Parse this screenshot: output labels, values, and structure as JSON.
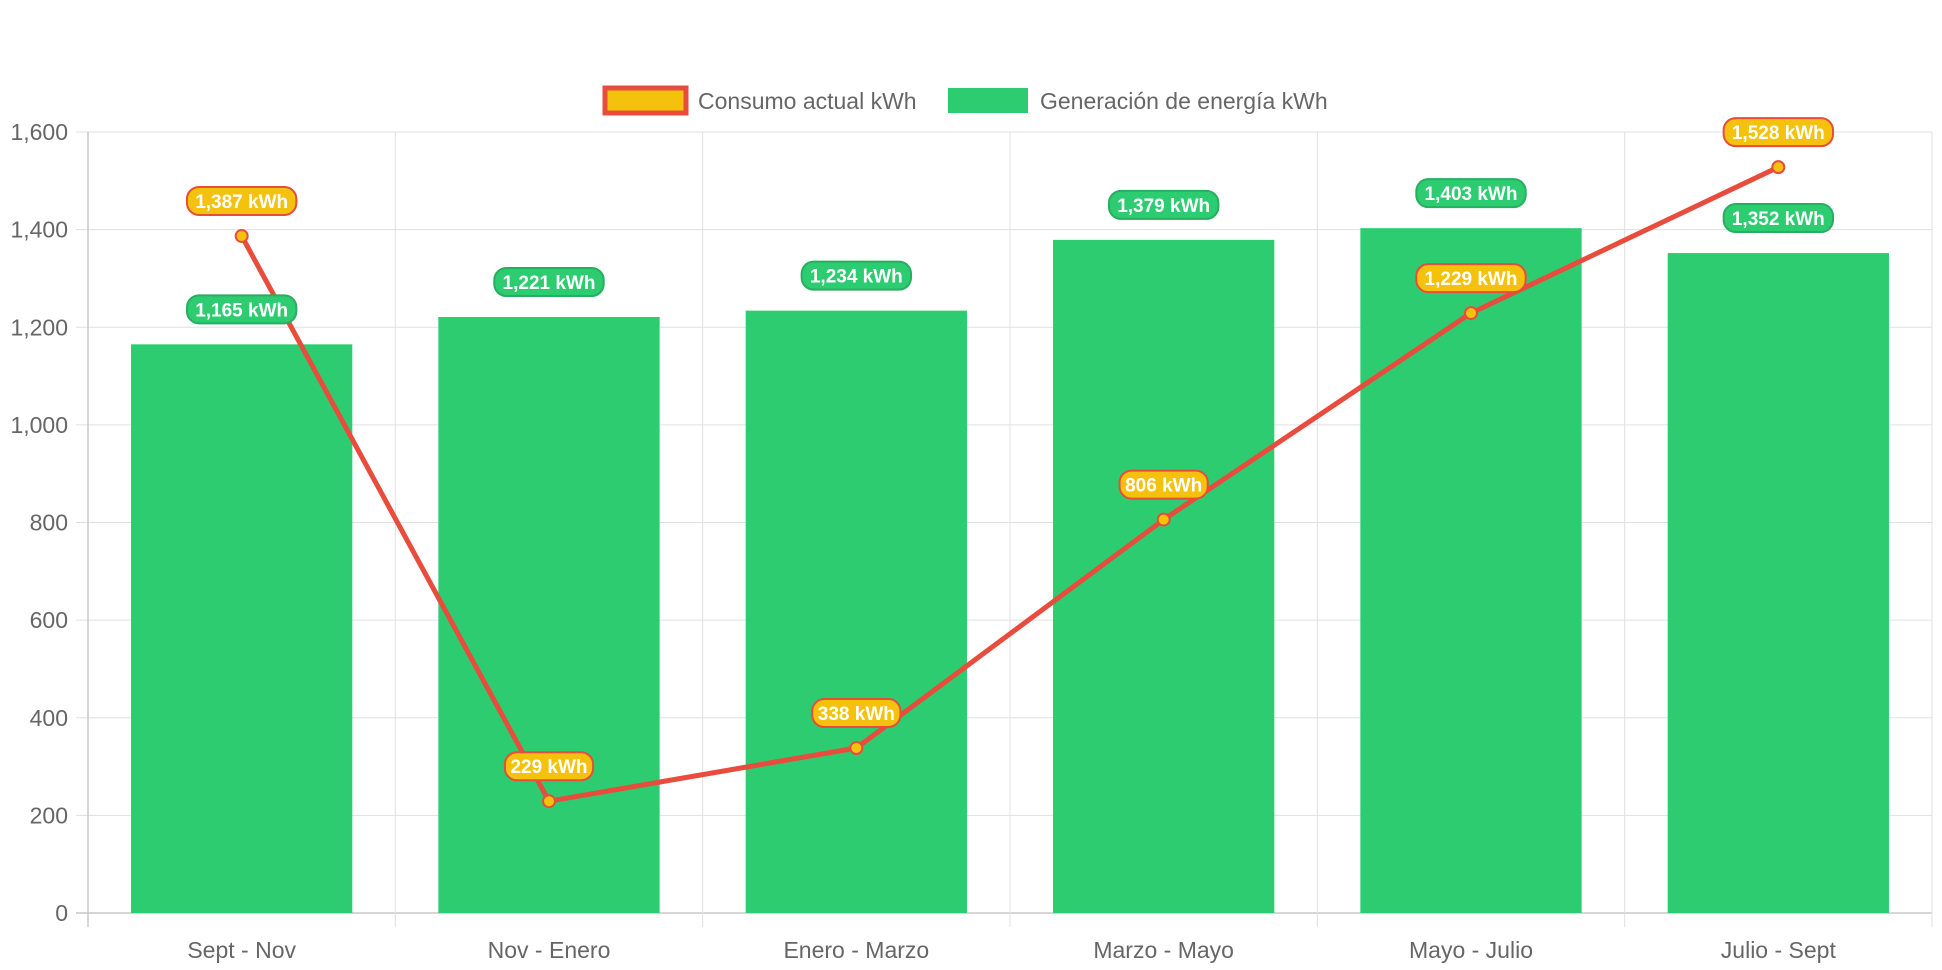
{
  "chart_data": {
    "type": "bar",
    "categories": [
      "Sept - Nov",
      "Nov - Enero",
      "Enero - Marzo",
      "Marzo - Mayo",
      "Mayo - Julio",
      "Julio - Sept"
    ],
    "series": [
      {
        "name": "Consumo actual kWh",
        "type": "line",
        "values": [
          1387,
          229,
          338,
          806,
          1229,
          1528
        ],
        "labels": [
          "1,387 kWh",
          "229 kWh",
          "338 kWh",
          "806 kWh",
          "1,229 kWh",
          "1,528 kWh"
        ],
        "line_color": "#e74c3c",
        "point_color": "#f4c20d"
      },
      {
        "name": "Generación de energía kWh",
        "type": "bar",
        "values": [
          1165,
          1221,
          1234,
          1379,
          1403,
          1352
        ],
        "labels": [
          "1,165 kWh",
          "1,221 kWh",
          "1,234 kWh",
          "1,379 kWh",
          "1,403 kWh",
          "1,352 kWh"
        ],
        "color": "#2ecc71",
        "label_color": "#27ae60"
      }
    ],
    "y_ticks": [
      "0",
      "200",
      "400",
      "600",
      "800",
      "1,000",
      "1,200",
      "1,400",
      "1,600"
    ],
    "ylim": [
      0,
      1600
    ],
    "grid": true,
    "legend_position": "top-center"
  }
}
